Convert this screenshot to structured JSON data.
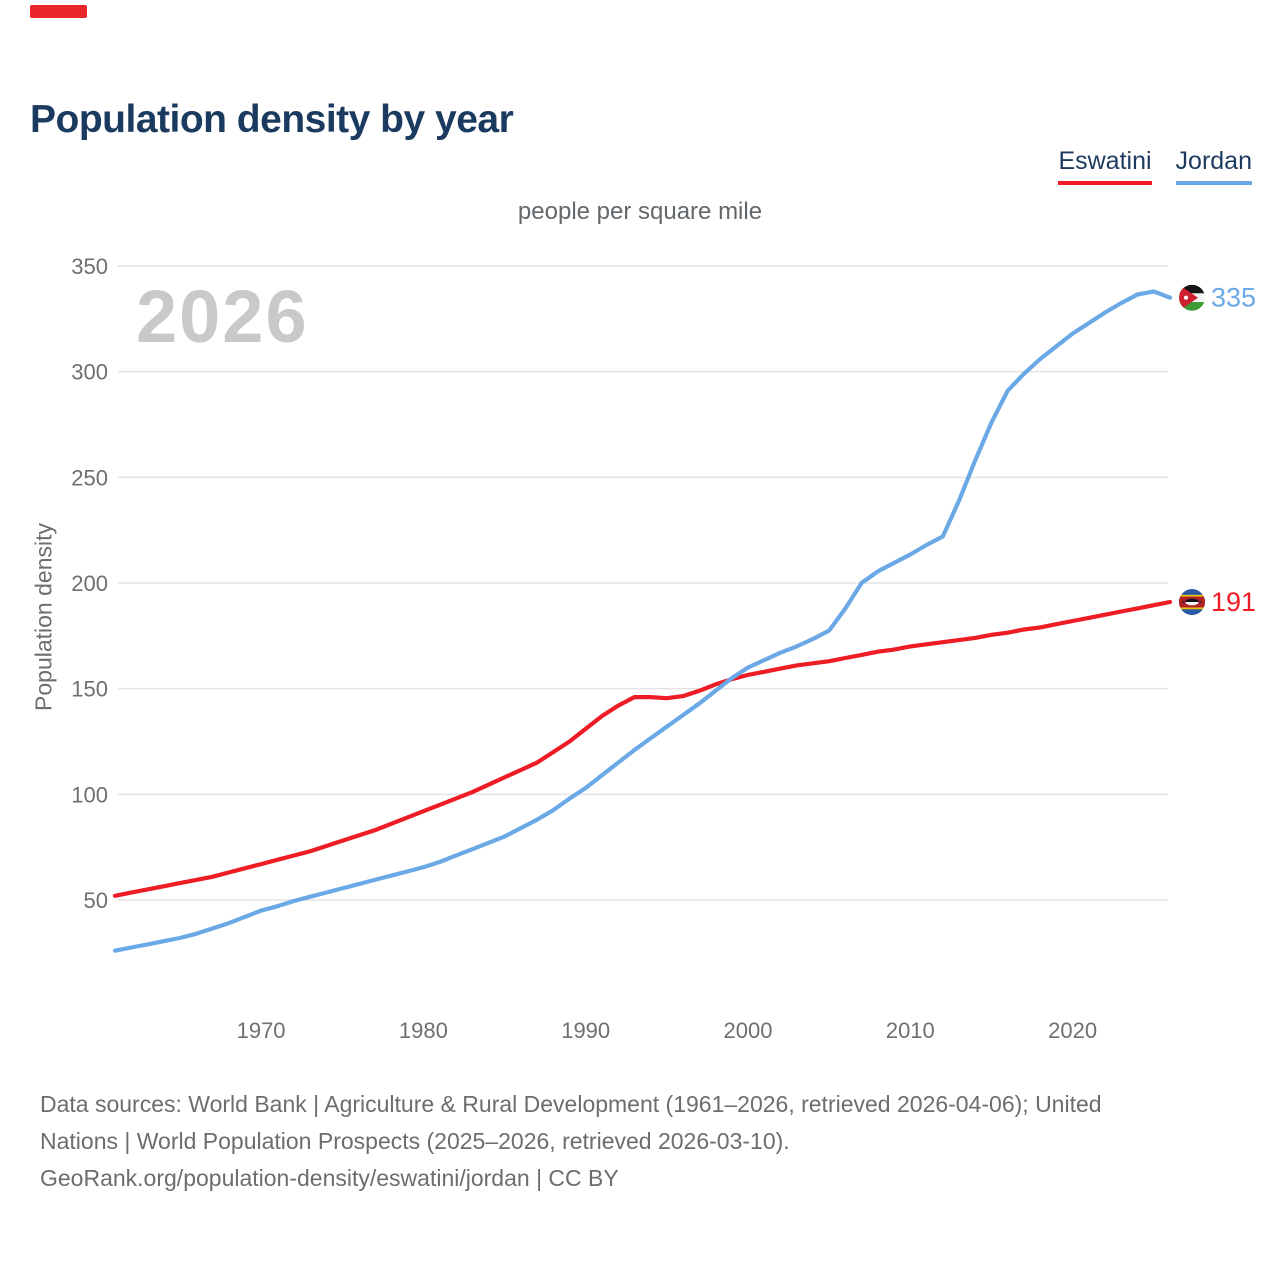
{
  "header": {
    "title": "Population density by year"
  },
  "legend": {
    "items": [
      {
        "label": "Eswatini",
        "color": "#ee1c25"
      },
      {
        "label": "Jordan",
        "color": "#6aa9e6"
      }
    ]
  },
  "chart": {
    "subtitle": "people per square mile",
    "ylabel": "Population density",
    "watermark": "2026",
    "grid_color": "#e4e4e4",
    "tick_color": "#6f6f6f",
    "end_markers": [
      {
        "series": "Jordan",
        "value_label": "335",
        "flag": "jordan-flag"
      },
      {
        "series": "Eswatini",
        "value_label": "191",
        "flag": "eswatini-flag"
      }
    ]
  },
  "chart_data": {
    "type": "line",
    "title": "Population density by year",
    "subtitle": "people per square mile",
    "xlabel": "",
    "ylabel": "Population density",
    "xlim": [
      1961,
      2026
    ],
    "ylim": [
      0,
      350
    ],
    "x_ticks": [
      1970,
      1980,
      1990,
      2000,
      2010,
      2020
    ],
    "y_ticks": [
      50,
      100,
      150,
      200,
      250,
      300,
      350
    ],
    "grid": true,
    "legend_position": "top-right",
    "x": [
      1961,
      1962,
      1963,
      1964,
      1965,
      1966,
      1967,
      1968,
      1969,
      1970,
      1971,
      1972,
      1973,
      1974,
      1975,
      1976,
      1977,
      1978,
      1979,
      1980,
      1981,
      1982,
      1983,
      1984,
      1985,
      1986,
      1987,
      1988,
      1989,
      1990,
      1991,
      1992,
      1993,
      1994,
      1995,
      1996,
      1997,
      1998,
      1999,
      2000,
      2001,
      2002,
      2003,
      2004,
      2005,
      2006,
      2007,
      2008,
      2009,
      2010,
      2011,
      2012,
      2013,
      2014,
      2015,
      2016,
      2017,
      2018,
      2019,
      2020,
      2021,
      2022,
      2023,
      2024,
      2025,
      2026
    ],
    "series": [
      {
        "name": "Eswatini",
        "color": "#ee1c25",
        "end_label": "191",
        "values": [
          52,
          53.5,
          55,
          56.5,
          58,
          59.5,
          61,
          63,
          65,
          67,
          69,
          71,
          73,
          75.5,
          78,
          80.5,
          83,
          86,
          89,
          92,
          95,
          98,
          101,
          104.5,
          108,
          111.5,
          115,
          120,
          125,
          131,
          137,
          142,
          146,
          146,
          145.5,
          146.5,
          149,
          152,
          154.5,
          156.5,
          158,
          159.5,
          161,
          162,
          163,
          164.5,
          166,
          167.5,
          168.5,
          170,
          171,
          172,
          173,
          174,
          175.5,
          176.5,
          178,
          179,
          180.5,
          182,
          183.5,
          185,
          186.5,
          188,
          189.5,
          191
        ]
      },
      {
        "name": "Jordan",
        "color": "#6aa9e6",
        "end_label": "335",
        "values": [
          26,
          27.5,
          29,
          30.5,
          32,
          34,
          36.5,
          39,
          42,
          45,
          47,
          49.5,
          51.5,
          53.5,
          55.5,
          57.5,
          59.5,
          61.5,
          63.5,
          65.5,
          68,
          71,
          74,
          77,
          80,
          84,
          88,
          92.5,
          98,
          103,
          109,
          115,
          121,
          126.5,
          132,
          137.5,
          143,
          149,
          155,
          160,
          163.5,
          167,
          170,
          173.5,
          177.5,
          188,
          200,
          205.5,
          209.5,
          213.5,
          218,
          222,
          239,
          258,
          276,
          291,
          299,
          306,
          312,
          318,
          323,
          328,
          332.5,
          336.5,
          338,
          335
        ]
      }
    ]
  },
  "footer": {
    "lines": [
      "Data sources: World Bank | Agriculture & Rural Development (1961–2026, retrieved 2026-04-06); United",
      "Nations | World Population Prospects (2025–2026, retrieved 2026-03-10).",
      "GeoRank.org/population-density/eswatini/jordan | CC BY"
    ]
  },
  "decorations": {
    "top_left_mark_color": "#e8262b"
  }
}
